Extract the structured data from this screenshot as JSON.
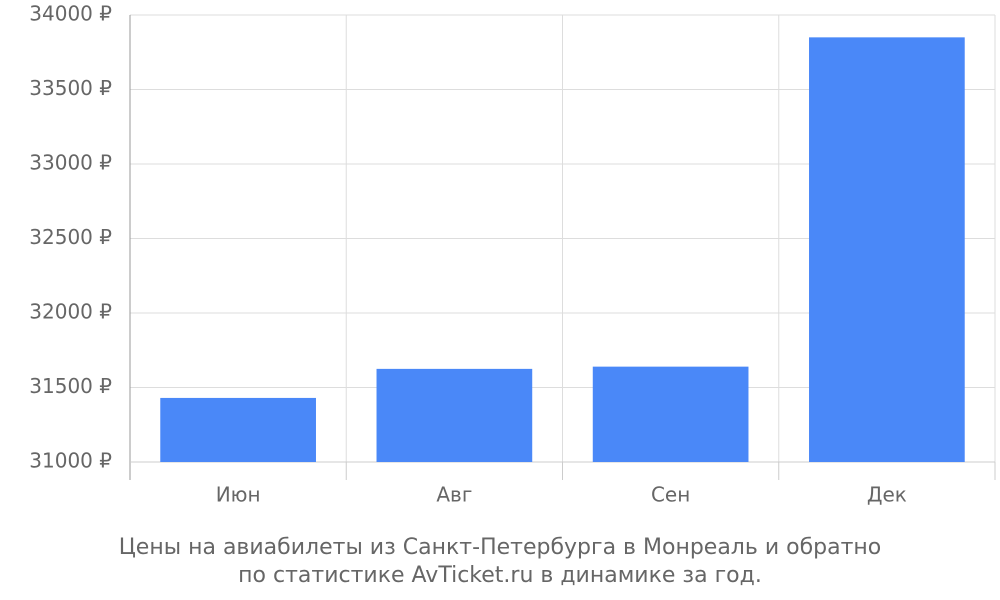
{
  "chart_data": {
    "type": "bar",
    "title": [
      "Цены на авиабилеты из Санкт-Петербурга в Монреаль и обратно",
      "по статистике AvTicket.ru в динамике за год."
    ],
    "categories": [
      "Июн",
      "Авг",
      "Сен",
      "Дек"
    ],
    "values": [
      31430,
      31625,
      31640,
      33850
    ],
    "color": "#4a88f8",
    "ylim": [
      31000,
      34000
    ],
    "yticks": [
      {
        "value": 31000,
        "label": "31000 ₽"
      },
      {
        "value": 31500,
        "label": "31500 ₽"
      },
      {
        "value": 32000,
        "label": "32000 ₽"
      },
      {
        "value": 32500,
        "label": "32500 ₽"
      },
      {
        "value": 33000,
        "label": "33000 ₽"
      },
      {
        "value": 33500,
        "label": "33500 ₽"
      },
      {
        "value": 34000,
        "label": "34000 ₽"
      }
    ],
    "grid": true
  }
}
